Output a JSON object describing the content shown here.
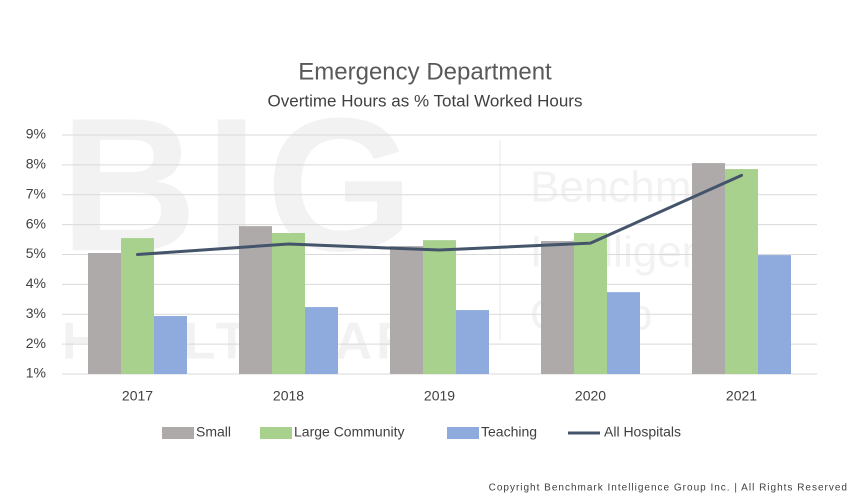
{
  "chart_data": {
    "type": "bar",
    "title": "Emergency Department",
    "subtitle": "Overtime Hours as % Total Worked Hours",
    "categories": [
      "2017",
      "2018",
      "2019",
      "2020",
      "2021"
    ],
    "series": [
      {
        "name": "Small",
        "type": "bar",
        "color": "#aeaaaa",
        "values": [
          5.05,
          5.95,
          5.28,
          5.45,
          8.06
        ]
      },
      {
        "name": "Large Community",
        "type": "bar",
        "color": "#a9d18e",
        "values": [
          5.55,
          5.72,
          5.48,
          5.72,
          7.86
        ]
      },
      {
        "name": "Teaching",
        "type": "bar",
        "color": "#8faadc",
        "values": [
          2.94,
          3.24,
          3.14,
          3.74,
          4.98
        ]
      },
      {
        "name": "All Hospitals",
        "type": "line",
        "color": "#44546a",
        "values": [
          5.0,
          5.35,
          5.15,
          5.38,
          7.65
        ]
      }
    ],
    "ylim": [
      1,
      9
    ],
    "yticks": [
      {
        "value": 1,
        "label": "1%"
      },
      {
        "value": 2,
        "label": "2%"
      },
      {
        "value": 3,
        "label": "3%"
      },
      {
        "value": 4,
        "label": "4%"
      },
      {
        "value": 5,
        "label": "5%"
      },
      {
        "value": 6,
        "label": "6%"
      },
      {
        "value": 7,
        "label": "7%"
      },
      {
        "value": 8,
        "label": "8%"
      },
      {
        "value": 9,
        "label": "9%"
      }
    ],
    "grid": true,
    "legend": "bottom"
  },
  "watermark": [
    "BIG",
    "HEALTHCARE",
    "Benchmark",
    "Intelligence",
    "Group"
  ],
  "copyright": "Copyright Benchmark Intelligence Group Inc. | All Rights Reserved"
}
